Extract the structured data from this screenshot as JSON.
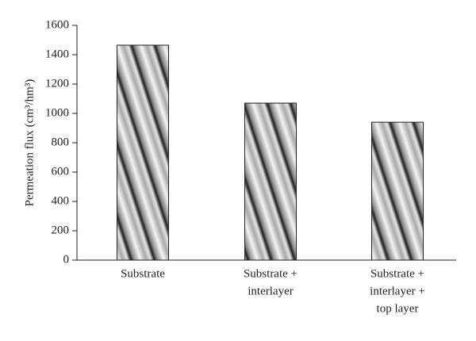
{
  "chart_data": {
    "type": "bar",
    "y_label": "Permeation flux (cm³/hm³)",
    "categories": [
      [
        "Substrate"
      ],
      [
        "Substrate +",
        "interlayer"
      ],
      [
        "Substrate +",
        "interlayer +",
        "top layer"
      ]
    ],
    "values": [
      1465,
      1070,
      940
    ],
    "ylim": [
      0,
      1600
    ],
    "yticks": [
      0,
      200,
      400,
      600,
      800,
      1000,
      1200,
      1400,
      1600
    ],
    "grid": false
  }
}
